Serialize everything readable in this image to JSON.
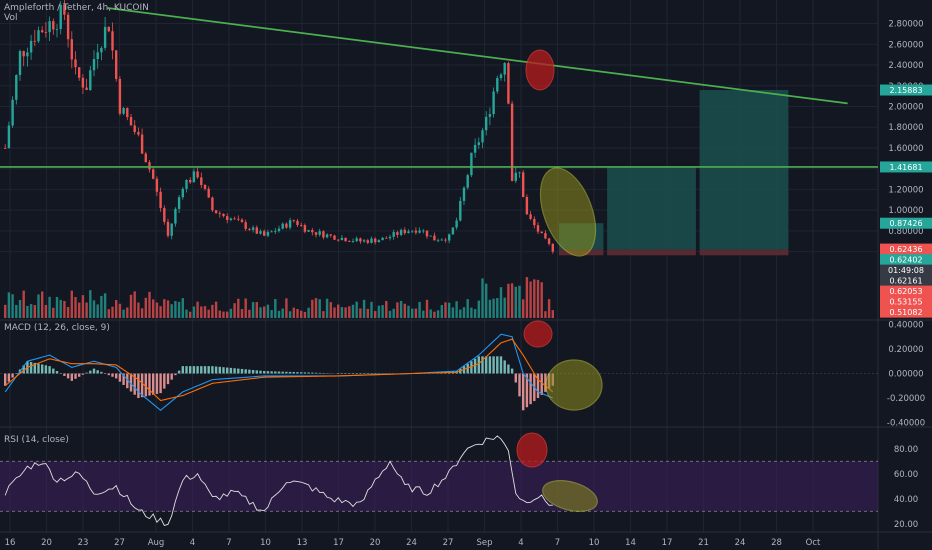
{
  "header": {
    "symbol": "Ampleforth / Tether, 4h, KUCOIN",
    "volume_label": "Vol",
    "macd_label": "MACD (12, 26, close, 9)",
    "rsi_label": "RSI (14, close)"
  },
  "colors": {
    "background": "#131722",
    "grid": "#1f2433",
    "up": "#26a69a",
    "down": "#ef5350",
    "trendline": "#4caf50",
    "macd_line": "#2196f3",
    "signal_line": "#ff6d00",
    "rsi_line": "#e0e0e0",
    "rsi_band": "#3d1f5c",
    "target_box": "#1b4f4d",
    "stop_box": "#5c2a33",
    "highlight_red": "#b71c1c",
    "highlight_olive": "#8d8d1e"
  },
  "chart_data": [
    {
      "type": "candlestick",
      "pane": "price",
      "title": "Ampleforth / Tether, 4h, KUCOIN",
      "y_axis_ticks": [
        "2.80000",
        "2.60000",
        "2.40000",
        "2.20000",
        "2.00000",
        "1.80000",
        "1.60000",
        "1.40000",
        "1.20000",
        "1.00000",
        "0.80000",
        "0.60000"
      ],
      "ylim": [
        0.5,
        2.95
      ],
      "x_axis_ticks": [
        "16",
        "20",
        "23",
        "27",
        "Aug",
        "4",
        "7",
        "10",
        "13",
        "17",
        "20",
        "24",
        "27",
        "Sep",
        "4",
        "7",
        "10",
        "14",
        "17",
        "21",
        "24",
        "28",
        "Oct"
      ],
      "price_tags": [
        {
          "label": "2.15883",
          "value": 2.15883,
          "color": "#26a69a"
        },
        {
          "label": "1.41681",
          "value": 1.41681,
          "color": "#26a69a"
        },
        {
          "label": "0.87426",
          "value": 0.87426,
          "color": "#26a69a"
        },
        {
          "label": "0.62436",
          "value": 0.62436,
          "color": "#ef5350"
        },
        {
          "label": "0.62402",
          "value": 0.62402,
          "color": "#26a69a"
        },
        {
          "label": "01:49:08",
          "value": 0.58,
          "color": "#363a45"
        },
        {
          "label": "0.62161",
          "value": 0.56,
          "color": "#363a45"
        },
        {
          "label": "0.62053",
          "value": 0.54,
          "color": "#ef5350"
        },
        {
          "label": "0.53155",
          "value": 0.53155,
          "color": "#ef5350"
        },
        {
          "label": "0.51082",
          "value": 0.51082,
          "color": "#ef5350"
        }
      ],
      "series_control_points": [
        [
          0,
          1.6
        ],
        [
          4,
          2.5
        ],
        [
          8,
          2.7
        ],
        [
          12,
          2.8
        ],
        [
          16,
          2.9
        ],
        [
          19,
          2.3
        ],
        [
          22,
          2.2
        ],
        [
          25,
          2.6
        ],
        [
          28,
          2.8
        ],
        [
          31,
          2.0
        ],
        [
          36,
          1.7
        ],
        [
          40,
          1.3
        ],
        [
          44,
          0.75
        ],
        [
          48,
          1.25
        ],
        [
          52,
          1.35
        ],
        [
          56,
          1.0
        ],
        [
          62,
          0.9
        ],
        [
          70,
          0.75
        ],
        [
          78,
          0.9
        ],
        [
          82,
          0.8
        ],
        [
          88,
          0.75
        ],
        [
          96,
          0.7
        ],
        [
          102,
          0.72
        ],
        [
          108,
          0.8
        ],
        [
          112,
          0.82
        ],
        [
          116,
          0.72
        ],
        [
          120,
          0.74
        ],
        [
          122,
          0.9
        ],
        [
          126,
          1.5
        ],
        [
          130,
          1.85
        ],
        [
          133,
          2.3
        ],
        [
          135,
          2.45
        ],
        [
          136,
          2.1
        ],
        [
          137,
          1.3
        ],
        [
          139,
          1.35
        ],
        [
          141,
          0.95
        ],
        [
          144,
          0.8
        ],
        [
          146,
          0.7
        ],
        [
          148,
          0.62
        ]
      ],
      "trendline_diagonal": {
        "from": [
          28,
          2.95
        ],
        "to": [
          228,
          2.03
        ]
      },
      "horizontal_level": 1.41681,
      "positions": [
        {
          "entry": 0.62,
          "target": 0.87426,
          "stop": 0.565,
          "from_bar": 150,
          "to_bar": 162
        },
        {
          "entry": 0.62,
          "target": 1.41681,
          "stop": 0.565,
          "from_bar": 163,
          "to_bar": 187
        },
        {
          "entry": 0.62,
          "target": 2.15883,
          "stop": 0.565,
          "from_bar": 188,
          "to_bar": 212
        }
      ]
    },
    {
      "type": "bar",
      "pane": "volume",
      "title": "Vol"
    },
    {
      "type": "line",
      "pane": "macd",
      "title": "MACD (12, 26, close, 9)",
      "y_axis_ticks": [
        "0.40000",
        "0.20000",
        "0.00000",
        "-0.20000",
        "-0.40000"
      ],
      "ylim": [
        -0.42,
        0.42
      ],
      "series": [
        {
          "name": "MACD",
          "control_points": [
            [
              0,
              -0.15
            ],
            [
              6,
              0.1
            ],
            [
              12,
              0.15
            ],
            [
              18,
              0.05
            ],
            [
              24,
              0.1
            ],
            [
              30,
              0.05
            ],
            [
              36,
              -0.15
            ],
            [
              42,
              -0.3
            ],
            [
              48,
              -0.15
            ],
            [
              56,
              -0.05
            ],
            [
              70,
              -0.02
            ],
            [
              90,
              -0.02
            ],
            [
              110,
              0.0
            ],
            [
              122,
              0.02
            ],
            [
              128,
              0.15
            ],
            [
              134,
              0.32
            ],
            [
              137,
              0.3
            ],
            [
              140,
              0.0
            ],
            [
              144,
              -0.15
            ],
            [
              148,
              -0.2
            ]
          ]
        },
        {
          "name": "Signal",
          "control_points": [
            [
              0,
              -0.1
            ],
            [
              6,
              0.05
            ],
            [
              12,
              0.12
            ],
            [
              18,
              0.08
            ],
            [
              24,
              0.08
            ],
            [
              30,
              0.07
            ],
            [
              36,
              -0.05
            ],
            [
              42,
              -0.22
            ],
            [
              48,
              -0.18
            ],
            [
              56,
              -0.08
            ],
            [
              70,
              -0.03
            ],
            [
              90,
              -0.02
            ],
            [
              110,
              0.0
            ],
            [
              122,
              0.01
            ],
            [
              128,
              0.08
            ],
            [
              134,
              0.25
            ],
            [
              137,
              0.28
            ],
            [
              140,
              0.15
            ],
            [
              144,
              -0.05
            ],
            [
              148,
              -0.15
            ]
          ]
        }
      ]
    },
    {
      "type": "line",
      "pane": "rsi",
      "title": "RSI (14, close)",
      "y_axis_ticks": [
        "80.00",
        "60.00",
        "40.00",
        "20.00"
      ],
      "ylim": [
        15,
        95
      ],
      "band": [
        30,
        70
      ],
      "control_points": [
        [
          0,
          45
        ],
        [
          6,
          65
        ],
        [
          10,
          70
        ],
        [
          14,
          55
        ],
        [
          20,
          60
        ],
        [
          24,
          45
        ],
        [
          30,
          50
        ],
        [
          36,
          30
        ],
        [
          40,
          25
        ],
        [
          44,
          20
        ],
        [
          48,
          55
        ],
        [
          52,
          60
        ],
        [
          56,
          40
        ],
        [
          62,
          45
        ],
        [
          70,
          30
        ],
        [
          76,
          55
        ],
        [
          82,
          50
        ],
        [
          88,
          40
        ],
        [
          96,
          35
        ],
        [
          100,
          55
        ],
        [
          104,
          70
        ],
        [
          108,
          50
        ],
        [
          114,
          45
        ],
        [
          120,
          60
        ],
        [
          124,
          78
        ],
        [
          128,
          85
        ],
        [
          133,
          90
        ],
        [
          136,
          80
        ],
        [
          138,
          45
        ],
        [
          140,
          38
        ],
        [
          144,
          42
        ],
        [
          148,
          35
        ]
      ]
    }
  ]
}
